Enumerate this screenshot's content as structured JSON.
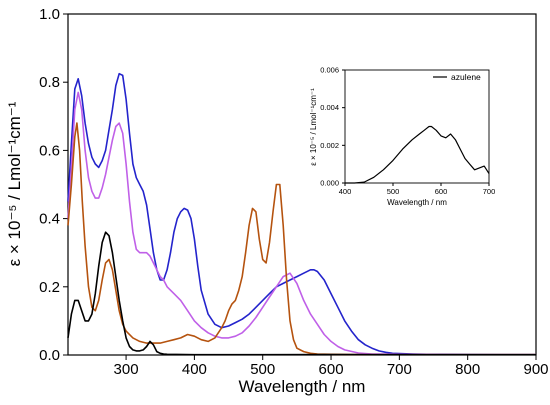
{
  "chart_data": [
    {
      "type": "line",
      "xlabel": "Wavelength / nm",
      "ylabel": "ε × 10⁻⁵ / Lmol⁻¹cm⁻¹",
      "xlim": [
        215,
        900
      ],
      "ylim": [
        0,
        1.0
      ],
      "xticks": [
        300,
        400,
        500,
        600,
        700,
        800,
        900
      ],
      "xtick_labels": [
        "300",
        "400",
        "500",
        "600",
        "700",
        "800",
        "900"
      ],
      "yticks": [
        0.0,
        0.2,
        0.4,
        0.6,
        0.8,
        1.0
      ],
      "ytick_labels": [
        "0.0",
        "0.2",
        "0.4",
        "0.6",
        "0.8",
        "1.0"
      ],
      "grid": false,
      "series": [
        {
          "color": "#2424cc",
          "x": [
            215,
            220,
            225,
            230,
            235,
            240,
            245,
            250,
            255,
            260,
            265,
            270,
            275,
            280,
            285,
            290,
            295,
            300,
            305,
            310,
            315,
            320,
            325,
            330,
            335,
            340,
            345,
            350,
            355,
            360,
            365,
            370,
            375,
            380,
            385,
            390,
            395,
            400,
            405,
            410,
            420,
            430,
            440,
            450,
            460,
            470,
            480,
            490,
            500,
            510,
            520,
            530,
            540,
            550,
            560,
            570,
            575,
            580,
            590,
            600,
            610,
            620,
            630,
            640,
            650,
            660,
            670,
            680,
            690,
            700,
            720,
            740,
            760,
            800,
            850,
            900
          ],
          "y": [
            0.45,
            0.62,
            0.78,
            0.81,
            0.76,
            0.68,
            0.62,
            0.58,
            0.56,
            0.55,
            0.57,
            0.6,
            0.66,
            0.72,
            0.79,
            0.825,
            0.82,
            0.75,
            0.65,
            0.56,
            0.52,
            0.5,
            0.48,
            0.44,
            0.37,
            0.3,
            0.25,
            0.22,
            0.22,
            0.25,
            0.3,
            0.36,
            0.4,
            0.42,
            0.43,
            0.425,
            0.4,
            0.34,
            0.26,
            0.19,
            0.12,
            0.09,
            0.08,
            0.085,
            0.095,
            0.105,
            0.12,
            0.14,
            0.16,
            0.18,
            0.2,
            0.21,
            0.22,
            0.23,
            0.24,
            0.25,
            0.25,
            0.245,
            0.22,
            0.18,
            0.14,
            0.1,
            0.07,
            0.045,
            0.03,
            0.02,
            0.012,
            0.008,
            0.005,
            0.004,
            0.003,
            0.002,
            0.002,
            0.0015,
            0.001,
            0.001
          ]
        },
        {
          "color": "#c060e8",
          "x": [
            215,
            220,
            225,
            230,
            235,
            240,
            245,
            250,
            255,
            260,
            265,
            270,
            275,
            280,
            285,
            290,
            295,
            300,
            305,
            310,
            315,
            320,
            325,
            330,
            335,
            340,
            345,
            350,
            355,
            360,
            370,
            380,
            390,
            400,
            410,
            420,
            430,
            440,
            450,
            460,
            470,
            480,
            490,
            500,
            510,
            520,
            530,
            540,
            550,
            560,
            570,
            580,
            590,
            600,
            610,
            620,
            640,
            660,
            700,
            800,
            900
          ],
          "y": [
            0.4,
            0.55,
            0.72,
            0.77,
            0.72,
            0.6,
            0.52,
            0.48,
            0.46,
            0.46,
            0.49,
            0.53,
            0.58,
            0.63,
            0.67,
            0.68,
            0.65,
            0.56,
            0.45,
            0.36,
            0.31,
            0.3,
            0.3,
            0.3,
            0.29,
            0.27,
            0.25,
            0.23,
            0.22,
            0.2,
            0.18,
            0.16,
            0.13,
            0.1,
            0.08,
            0.065,
            0.055,
            0.05,
            0.05,
            0.055,
            0.065,
            0.085,
            0.11,
            0.14,
            0.17,
            0.2,
            0.23,
            0.24,
            0.21,
            0.16,
            0.12,
            0.09,
            0.06,
            0.04,
            0.025,
            0.015,
            0.006,
            0.003,
            0.002,
            0.001,
            0.001
          ]
        },
        {
          "color": "#b5530f",
          "x": [
            215,
            220,
            225,
            228,
            232,
            236,
            240,
            245,
            250,
            255,
            260,
            265,
            270,
            275,
            280,
            285,
            290,
            295,
            300,
            310,
            320,
            330,
            340,
            350,
            360,
            370,
            380,
            390,
            400,
            410,
            420,
            430,
            440,
            445,
            450,
            455,
            460,
            465,
            470,
            475,
            480,
            485,
            490,
            495,
            500,
            505,
            510,
            515,
            520,
            525,
            530,
            535,
            540,
            545,
            550,
            560,
            570,
            580,
            600,
            650,
            700,
            900
          ],
          "y": [
            0.38,
            0.5,
            0.64,
            0.68,
            0.6,
            0.45,
            0.32,
            0.2,
            0.14,
            0.13,
            0.16,
            0.22,
            0.27,
            0.28,
            0.25,
            0.19,
            0.13,
            0.09,
            0.07,
            0.05,
            0.04,
            0.035,
            0.035,
            0.035,
            0.04,
            0.045,
            0.05,
            0.06,
            0.055,
            0.045,
            0.04,
            0.05,
            0.08,
            0.1,
            0.13,
            0.15,
            0.16,
            0.19,
            0.23,
            0.3,
            0.38,
            0.43,
            0.42,
            0.34,
            0.28,
            0.27,
            0.33,
            0.42,
            0.5,
            0.5,
            0.38,
            0.22,
            0.1,
            0.045,
            0.02,
            0.01,
            0.005,
            0.003,
            0.002,
            0.001,
            0.001,
            0.001
          ]
        },
        {
          "color": "#000000",
          "x": [
            215,
            220,
            225,
            230,
            235,
            240,
            245,
            250,
            255,
            260,
            265,
            270,
            275,
            280,
            285,
            290,
            295,
            300,
            305,
            310,
            315,
            320,
            325,
            330,
            335,
            340,
            345,
            350,
            355,
            360,
            400,
            500,
            600,
            700,
            800,
            900
          ],
          "y": [
            0.05,
            0.12,
            0.16,
            0.16,
            0.13,
            0.1,
            0.1,
            0.12,
            0.18,
            0.26,
            0.33,
            0.36,
            0.35,
            0.3,
            0.23,
            0.16,
            0.1,
            0.05,
            0.025,
            0.015,
            0.012,
            0.012,
            0.015,
            0.025,
            0.04,
            0.03,
            0.01,
            0.005,
            0.003,
            0.002,
            0.001,
            0.001,
            0.0015,
            0.001,
            0.001,
            0.001
          ]
        }
      ]
    },
    {
      "type": "line",
      "xlabel": "Wavelength / nm",
      "ylabel": "ε × 10⁻⁵ / Lmol⁻¹cm⁻¹",
      "xlim": [
        400,
        700
      ],
      "ylim": [
        0,
        0.006
      ],
      "xticks": [
        400,
        500,
        600,
        700
      ],
      "xtick_labels": [
        "400",
        "500",
        "600",
        "700"
      ],
      "yticks": [
        0.0,
        0.002,
        0.004,
        0.006
      ],
      "ytick_labels": [
        "0.000",
        "0.002",
        "0.004",
        "0.006"
      ],
      "legend": "top-right",
      "series": [
        {
          "name": "azulene",
          "color": "#000000",
          "x": [
            400,
            420,
            440,
            460,
            480,
            500,
            520,
            540,
            555,
            565,
            575,
            580,
            590,
            600,
            610,
            620,
            630,
            640,
            650,
            660,
            670,
            680,
            690,
            700
          ],
          "y": [
            0.0,
            0.0,
            5e-05,
            0.0003,
            0.0007,
            0.0012,
            0.0018,
            0.0023,
            0.0026,
            0.0028,
            0.003,
            0.003,
            0.0028,
            0.0025,
            0.0024,
            0.0026,
            0.0023,
            0.0018,
            0.0013,
            0.001,
            0.0007,
            0.0008,
            0.0009,
            0.0005
          ]
        }
      ]
    }
  ]
}
